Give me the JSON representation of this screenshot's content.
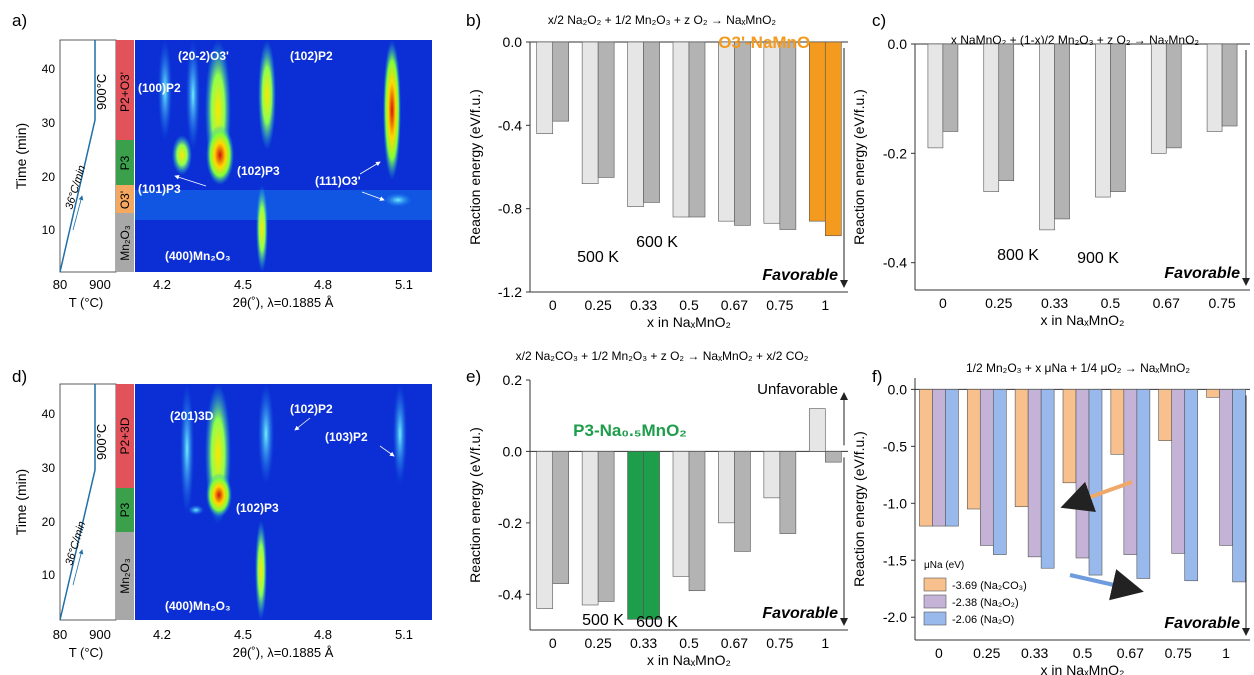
{
  "colors": {
    "light_gray": "#e6e6e6",
    "dark_gray": "#b3b3b3",
    "orange": "#f39a1f",
    "green": "#1e9d4a",
    "orange_title": "#f39a1f",
    "green_title": "#1e9d4a",
    "f_orange": "#f7c08c",
    "f_purple": "#c4b3d6",
    "f_blue": "#99b8ec",
    "arrow_orange": "#f0a86a",
    "arrow_blue": "#6e9cde",
    "phase_red": "#e1525a",
    "phase_green": "#3aa04c",
    "phase_orange": "#f5a860",
    "phase_gray": "#a8a8a8",
    "map_blue": "#0b2fd4",
    "heating_line": "#1f6fa8"
  },
  "panel_a": {
    "letter": "a)",
    "ylabel": "Time (min)",
    "xlabel_T": "T (°C)",
    "xlabel_2theta": "2θ(˚), λ=0.1885 Å",
    "y_ticks": [
      "10",
      "20",
      "30",
      "40"
    ],
    "T_ticks": [
      "80",
      "900"
    ],
    "theta_ticks": [
      "4.2",
      "4.5",
      "4.8",
      "5.1"
    ],
    "hold_label": "900°C",
    "ramp_label": "36°C/min",
    "phases": [
      "P2+O3'",
      "P3",
      "O3'",
      "Mn₂O₃"
    ],
    "peak_labels": [
      "(20-2)O3'",
      "(102)P2",
      "(100)P2",
      "(102)P3",
      "(101)P3",
      "(111)O3'",
      "(400)Mn₂O₃"
    ]
  },
  "panel_d": {
    "letter": "d)",
    "ylabel": "Time (min)",
    "xlabel_T": "T (°C)",
    "xlabel_2theta": "2θ(˚), λ=0.1885 Å",
    "y_ticks": [
      "10",
      "20",
      "30",
      "40"
    ],
    "T_ticks": [
      "80",
      "900"
    ],
    "theta_ticks": [
      "4.2",
      "4.5",
      "4.8",
      "5.1"
    ],
    "hold_label": "900°C",
    "ramp_label": "36°C/min",
    "phases": [
      "P2+3D",
      "P3",
      "Mn₂O₃"
    ],
    "peak_labels": [
      "(201)3D",
      "(102)P2",
      "(103)P2",
      "(102)P3",
      "(400)Mn₂O₃"
    ]
  },
  "chart_data": [
    {
      "panel": "b)",
      "type": "bar",
      "title": "x/2 Na₂O₂ + 1/2 Mn₂O₃ + z O₂ → NaₓMnO₂",
      "highlight_label": "O3'-NaMnO₂",
      "ylabel": "Reaction energy (eV/f.u.)",
      "xlabel": "x in NaₓMnO₂",
      "categories": [
        "0",
        "0.25",
        "0.33",
        "0.5",
        "0.67",
        "0.75",
        "1"
      ],
      "ylim": [
        -1.2,
        0.0
      ],
      "yticks": [
        "0.0",
        "-0.4",
        "-0.8",
        "-1.2"
      ],
      "series": [
        {
          "name": "500 K",
          "values": [
            -0.44,
            -0.68,
            -0.79,
            -0.84,
            -0.86,
            -0.87,
            -0.86
          ]
        },
        {
          "name": "600 K",
          "values": [
            -0.38,
            -0.65,
            -0.77,
            -0.84,
            -0.88,
            -0.9,
            -0.93
          ]
        }
      ],
      "highlight_index": 6,
      "annotation": "Favorable"
    },
    {
      "panel": "c)",
      "type": "bar",
      "title": "x NaMnO₂ + (1-x)/2 Mn₂O₃ + z O₂ → NaₓMnO₂",
      "ylabel": "Reaction energy (eV/f.u.)",
      "xlabel": "x in NaₓMnO₂",
      "categories": [
        "0",
        "0.25",
        "0.33",
        "0.5",
        "0.67",
        "0.75"
      ],
      "ylim": [
        -0.45,
        0.0
      ],
      "yticks": [
        "0.0",
        "-0.2",
        "-0.4"
      ],
      "series": [
        {
          "name": "800 K",
          "values": [
            -0.19,
            -0.27,
            -0.34,
            -0.28,
            -0.2,
            -0.16
          ]
        },
        {
          "name": "900 K",
          "values": [
            -0.16,
            -0.25,
            -0.32,
            -0.27,
            -0.19,
            -0.15
          ]
        }
      ],
      "annotation": "Favorable"
    },
    {
      "panel": "e)",
      "type": "bar",
      "title": "x/2 Na₂CO₃ + 1/2 Mn₂O₃ + z O₂ → NaₓMnO₂ + x/2 CO₂",
      "highlight_label": "P3-Na₀.₅MnO₂",
      "ylabel": "Reaction energy (eV/f.u.)",
      "xlabel": "x in NaₓMnO₂",
      "categories": [
        "0",
        "0.25",
        "0.33",
        "0.5",
        "0.67",
        "0.75",
        "1"
      ],
      "ylim": [
        -0.5,
        0.2
      ],
      "yticks": [
        "0.2",
        "0.0",
        "-0.2",
        "-0.4"
      ],
      "series": [
        {
          "name": "500 K",
          "values": [
            -0.44,
            -0.43,
            -0.47,
            -0.35,
            -0.2,
            -0.13,
            0.12
          ]
        },
        {
          "name": "600 K",
          "values": [
            -0.37,
            -0.42,
            -0.47,
            -0.39,
            -0.28,
            -0.23,
            -0.03
          ]
        }
      ],
      "highlight_index": 2,
      "annotation": "Favorable",
      "annotation_top": "Unfavorable"
    },
    {
      "panel": "f)",
      "type": "bar",
      "title": "1/2 Mn₂O₃ + x μNa + 1/4 μO₂ → NaₓMnO₂",
      "ylabel": "Reaction energy (eV/f.u.)",
      "xlabel": "x in NaₓMnO₂",
      "categories": [
        "0",
        "0.25",
        "0.33",
        "0.5",
        "0.67",
        "0.75",
        "1"
      ],
      "ylim": [
        -2.2,
        0.1
      ],
      "yticks": [
        "0.0",
        "-0.5",
        "-1.0",
        "-1.5",
        "-2.0"
      ],
      "legend_title": "μNa (eV)",
      "series": [
        {
          "name": "-3.69 (Na₂CO₃)",
          "values": [
            -1.2,
            -1.05,
            -1.03,
            -0.82,
            -0.57,
            -0.45,
            -0.07
          ]
        },
        {
          "name": "-2.38 (Na₂O₂)",
          "values": [
            -1.2,
            -1.37,
            -1.47,
            -1.48,
            -1.45,
            -1.44,
            -1.37
          ]
        },
        {
          "name": "-2.06 (Na₂O)",
          "values": [
            -1.2,
            -1.45,
            -1.57,
            -1.63,
            -1.66,
            -1.68,
            -1.69
          ]
        }
      ],
      "annotation": "Favorable"
    }
  ]
}
